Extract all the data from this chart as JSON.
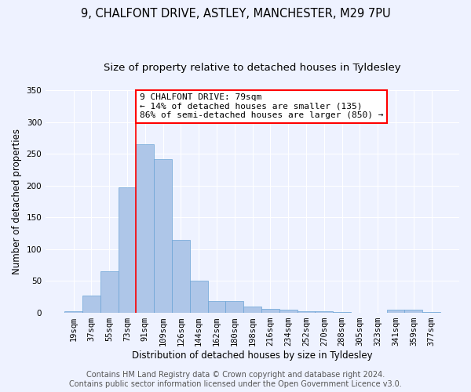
{
  "title1": "9, CHALFONT DRIVE, ASTLEY, MANCHESTER, M29 7PU",
  "title2": "Size of property relative to detached houses in Tyldesley",
  "xlabel": "Distribution of detached houses by size in Tyldesley",
  "ylabel": "Number of detached properties",
  "categories": [
    "19sqm",
    "37sqm",
    "55sqm",
    "73sqm",
    "91sqm",
    "109sqm",
    "126sqm",
    "144sqm",
    "162sqm",
    "180sqm",
    "198sqm",
    "216sqm",
    "234sqm",
    "252sqm",
    "270sqm",
    "288sqm",
    "305sqm",
    "323sqm",
    "341sqm",
    "359sqm",
    "377sqm"
  ],
  "values": [
    2,
    27,
    65,
    197,
    265,
    242,
    115,
    50,
    19,
    19,
    10,
    6,
    5,
    2,
    2,
    1,
    0,
    0,
    5,
    5,
    1
  ],
  "bar_color": "#aec6e8",
  "bar_edge_color": "#6aa3d5",
  "vline_x": 3.5,
  "vline_color": "red",
  "annotation_text": "9 CHALFONT DRIVE: 79sqm\n← 14% of detached houses are smaller (135)\n86% of semi-detached houses are larger (850) →",
  "annotation_box_color": "white",
  "annotation_box_edge_color": "red",
  "ylim": [
    0,
    350
  ],
  "yticks": [
    0,
    50,
    100,
    150,
    200,
    250,
    300,
    350
  ],
  "footer1": "Contains HM Land Registry data © Crown copyright and database right 2024.",
  "footer2": "Contains public sector information licensed under the Open Government Licence v3.0.",
  "bg_color": "#eef2ff",
  "grid_color": "#ffffff",
  "title1_fontsize": 10.5,
  "title2_fontsize": 9.5,
  "axis_label_fontsize": 8.5,
  "tick_fontsize": 7.5,
  "annotation_fontsize": 8,
  "footer_fontsize": 7
}
